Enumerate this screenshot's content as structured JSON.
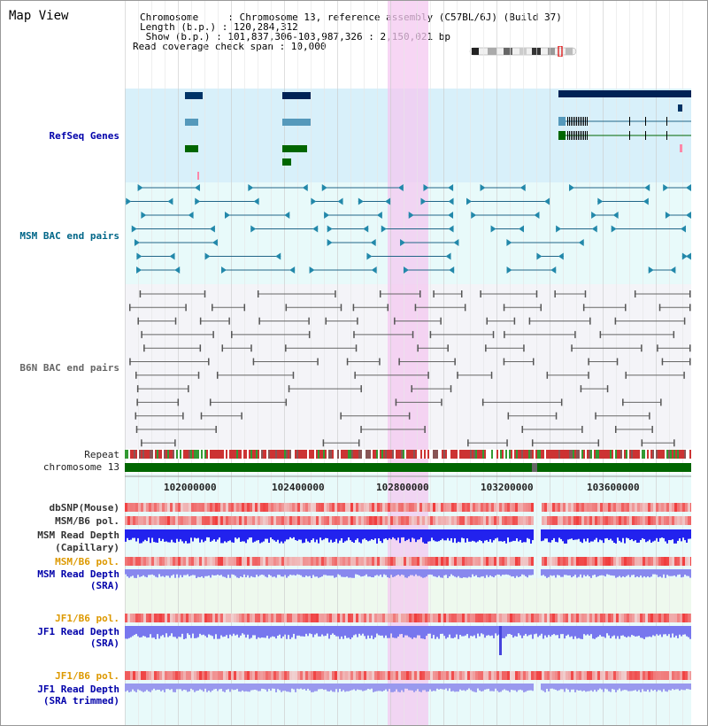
{
  "header": {
    "title": "Map View",
    "info_lines": [
      "Chromosome     : Chromosome 13, reference assembly (C57BL/6J) (Build 37)",
      "Length (b.p.) : 120,284,312",
      " Show (b.p.) : 101,837,306-103,987,326 : 2,150,021 bp",
      "Read coverage check span : 10,000"
    ]
  },
  "tracks": {
    "refseq": "RefSeq Genes",
    "msm_bac": "MSM BAC end pairs",
    "b6n_bac": "B6N BAC end pairs",
    "repeat": "Repeat",
    "chromosome": "chromosome 13",
    "dbsnp": "dbSNP(Mouse)",
    "msm_b6_pol": "MSM/B6 pol.",
    "msm_depth_cap_1": "MSM Read Depth",
    "msm_depth_cap_2": "(Capillary)",
    "msm_b6_pol_2": "MSM/B6 pol.",
    "msm_depth_sra_1": "MSM Read Depth",
    "msm_depth_sra_2": "(SRA)",
    "jf1_b6_pol": "JF1/B6 pol.",
    "jf1_depth_sra_1": "JF1 Read Depth",
    "jf1_depth_sra_2": "(SRA)",
    "jf1_b6_pol_2": "JF1/B6 pol.",
    "jf1_depth_trim_1": "JF1 Read Depth",
    "jf1_depth_trim_2": "(SRA trimmed)"
  },
  "axis": {
    "ticks": [
      "102000000",
      "102400000",
      "102800000",
      "103200000",
      "103600000"
    ]
  },
  "colors": {
    "refseq_bg": "#d8f0fa",
    "msm_bg": "#e8fafa",
    "b6n_bg": "#f4f4f8",
    "highlight": "#f4c8f0",
    "pol_red": "#ee3333",
    "depth_blue": "#2222ee",
    "depth_light": "#8888ff",
    "chromosome_green": "#006600"
  }
}
